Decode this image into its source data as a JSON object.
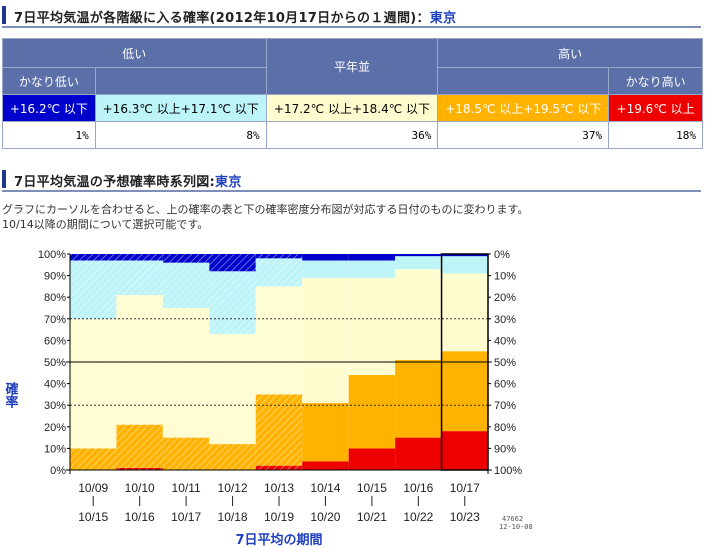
{
  "section1": {
    "title": "7日平均気温が各階級に入る確率(2012年10月17日からの１週間)：",
    "location": "東京"
  },
  "prob_table": {
    "headers": {
      "low": "低い",
      "normal": "平年並",
      "high": "高い",
      "very_low": "かなり低い",
      "very_high": "かなり高い"
    },
    "ranges": [
      "+16.2℃ 以下",
      "+16.3℃ 以上+17.1℃ 以下",
      "+17.2℃ 以上+18.4℃ 以下",
      "+18.5℃ 以上+19.5℃ 以下",
      "+19.6℃ 以上"
    ],
    "percents": [
      "1%",
      "8%",
      "36%",
      "37%",
      "18%"
    ]
  },
  "section2": {
    "title": "7日平均気温の予想確率時系列図:",
    "location": "東京"
  },
  "description": [
    "グラフにカーソルを合わせると、上の確率の表と下の確率密度分布図が対応する日付のものに変わります。",
    "10/14以降の期間について選択可能です。"
  ],
  "colors": {
    "very_low": "#0000cc",
    "low": "#bdf4f8",
    "normal": "#fffdd0",
    "high": "#ffb300",
    "very_high": "#ee0000",
    "header_bg": "#5b6fa8"
  },
  "chart_data": {
    "type": "area",
    "ylabel": "確率",
    "xlabel": "7日平均の期間",
    "left_ticks": [
      "100%",
      "90%",
      "80%",
      "70%",
      "60%",
      "50%",
      "40%",
      "30%",
      "20%",
      "10%",
      "0%"
    ],
    "right_ticks": [
      "0%",
      "10%",
      "20%",
      "30%",
      "40%",
      "50%",
      "60%",
      "70%",
      "80%",
      "90%",
      "100%"
    ],
    "periods": [
      {
        "start": "10/09",
        "end": "10/15"
      },
      {
        "start": "10/10",
        "end": "10/16"
      },
      {
        "start": "10/11",
        "end": "10/17"
      },
      {
        "start": "10/12",
        "end": "10/18"
      },
      {
        "start": "10/13",
        "end": "10/19"
      },
      {
        "start": "10/14",
        "end": "10/20"
      },
      {
        "start": "10/15",
        "end": "10/21"
      },
      {
        "start": "10/16",
        "end": "10/22"
      },
      {
        "start": "10/17",
        "end": "10/23"
      }
    ],
    "series": [
      {
        "key": "very_high",
        "values": [
          0,
          1,
          0,
          0,
          2,
          4,
          10,
          15,
          18
        ]
      },
      {
        "key": "high",
        "values": [
          10,
          20,
          15,
          12,
          33,
          27,
          34,
          36,
          37
        ]
      },
      {
        "key": "normal",
        "values": [
          60,
          60,
          60,
          51,
          50,
          58,
          45,
          42,
          36
        ]
      },
      {
        "key": "low",
        "values": [
          27,
          16,
          21,
          29,
          13,
          8,
          8,
          6,
          8
        ]
      },
      {
        "key": "very_low",
        "values": [
          3,
          3,
          4,
          8,
          2,
          3,
          3,
          1,
          1
        ]
      }
    ],
    "selected_index": 8,
    "stamp": [
      "47662",
      "12-10-08"
    ]
  }
}
